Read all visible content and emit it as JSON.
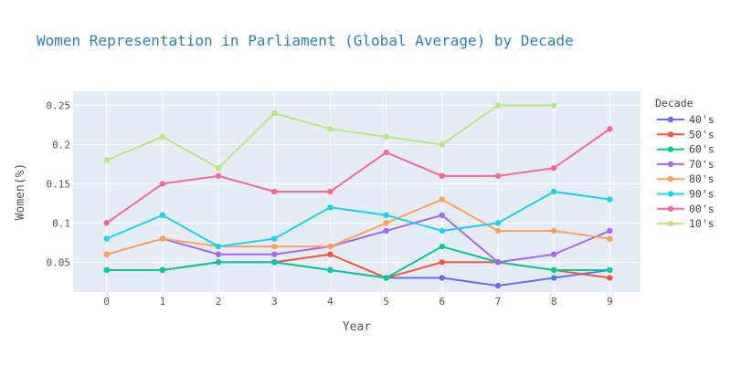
{
  "chart_data": {
    "type": "line",
    "title": "Women Representation in Parliament (Global Average) by Decade",
    "xlabel": "Year",
    "ylabel": "Women(%)",
    "x": [
      0,
      1,
      2,
      3,
      4,
      5,
      6,
      7,
      8,
      9
    ],
    "xlim": [
      -0.6,
      9.55
    ],
    "ylim": [
      0.012,
      0.268
    ],
    "yticks": [
      0.05,
      0.1,
      0.15,
      0.2,
      0.25
    ],
    "ytick_labels": [
      "0.05",
      "0.1",
      "0.15",
      "0.2",
      "0.25"
    ],
    "grid": true,
    "legend_title": "Decade",
    "legend_position": "right",
    "series": [
      {
        "name": "40's",
        "color": "#636efa",
        "values": [
          0.04,
          0.04,
          0.05,
          0.05,
          0.04,
          0.03,
          0.03,
          0.02,
          0.03,
          0.04
        ]
      },
      {
        "name": "50's",
        "color": "#ef553b",
        "values": [
          0.04,
          0.04,
          0.05,
          0.05,
          0.06,
          0.03,
          0.05,
          0.05,
          0.04,
          0.03
        ]
      },
      {
        "name": "60's",
        "color": "#00cc96",
        "values": [
          0.04,
          0.04,
          0.05,
          0.05,
          0.04,
          0.03,
          0.07,
          0.05,
          0.04,
          0.04
        ]
      },
      {
        "name": "70's",
        "color": "#ab63fa",
        "values": [
          0.06,
          0.08,
          0.06,
          0.06,
          0.07,
          0.09,
          0.11,
          0.05,
          0.06,
          0.09
        ]
      },
      {
        "name": "80's",
        "color": "#ffa15a",
        "values": [
          0.06,
          0.08,
          0.07,
          0.07,
          0.07,
          0.1,
          0.13,
          0.09,
          0.09,
          0.08
        ]
      },
      {
        "name": "90's",
        "color": "#19d3f3",
        "values": [
          0.08,
          0.11,
          0.07,
          0.08,
          0.12,
          0.11,
          0.09,
          0.1,
          0.14,
          0.13
        ]
      },
      {
        "name": "00's",
        "color": "#ff6692",
        "values": [
          0.1,
          0.15,
          0.16,
          0.14,
          0.14,
          0.19,
          0.16,
          0.16,
          0.17,
          0.22
        ]
      },
      {
        "name": "10's",
        "color": "#b6e880",
        "values": [
          0.18,
          0.21,
          0.17,
          0.24,
          0.22,
          0.21,
          0.2,
          0.25,
          0.25,
          null
        ]
      }
    ]
  }
}
